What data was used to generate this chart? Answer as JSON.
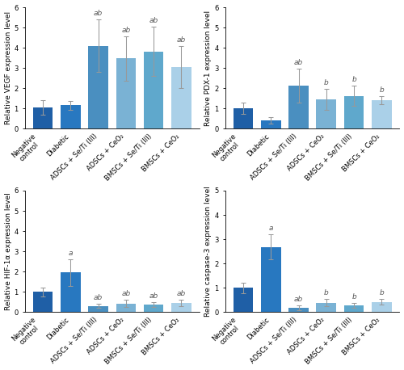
{
  "categories": [
    "Negative\ncontrol",
    "Diabetic",
    "ADSCs + Se/Ti (III)",
    "ADSCs + CeO₂",
    "BMSCs + Se/Ti (III)",
    "BMSCs + CeO₂"
  ],
  "subplots": [
    {
      "ylabel": "Relative VEGF expression level",
      "ylim": [
        0,
        6
      ],
      "yticks": [
        0,
        1,
        2,
        3,
        4,
        5,
        6
      ],
      "values": [
        1.05,
        1.15,
        4.1,
        3.48,
        3.82,
        3.05
      ],
      "errors": [
        0.35,
        0.22,
        1.3,
        1.1,
        1.22,
        1.05
      ],
      "annotations": [
        "",
        "",
        "ab",
        "ab",
        "ab",
        "ab"
      ]
    },
    {
      "ylabel": "Relative PDX-1 expression level",
      "ylim": [
        0,
        6
      ],
      "yticks": [
        0,
        1,
        2,
        3,
        4,
        5,
        6
      ],
      "values": [
        1.0,
        0.4,
        2.12,
        1.45,
        1.62,
        1.42
      ],
      "errors": [
        0.28,
        0.17,
        0.85,
        0.52,
        0.5,
        0.2
      ],
      "annotations": [
        "",
        "",
        "ab",
        "b",
        "b",
        "b"
      ]
    },
    {
      "ylabel": "Relative HIF-1α expression level",
      "ylim": [
        0,
        6
      ],
      "yticks": [
        0,
        1,
        2,
        3,
        4,
        5,
        6
      ],
      "values": [
        1.0,
        1.95,
        0.3,
        0.42,
        0.35,
        0.45
      ],
      "errors": [
        0.22,
        0.65,
        0.1,
        0.17,
        0.12,
        0.15
      ],
      "annotations": [
        "",
        "a",
        "ab",
        "ab",
        "ab",
        "ab"
      ]
    },
    {
      "ylabel": "Relative caspase-3 expression level",
      "ylim": [
        0,
        5
      ],
      "yticks": [
        0,
        1,
        2,
        3,
        4,
        5
      ],
      "values": [
        1.0,
        2.68,
        0.18,
        0.38,
        0.28,
        0.42
      ],
      "errors": [
        0.22,
        0.52,
        0.1,
        0.15,
        0.1,
        0.12
      ],
      "annotations": [
        "",
        "a",
        "ab",
        "b",
        "b",
        "b"
      ]
    }
  ],
  "bar_colors": [
    "#1f5fa6",
    "#2878c0",
    "#4a8fc0",
    "#7ab2d4",
    "#5fa8cc",
    "#aad0e8"
  ],
  "error_color": "#999999",
  "annotation_color": "#555555",
  "background_color": "#ffffff",
  "tick_label_fontsize": 6.0,
  "ylabel_fontsize": 6.5,
  "annotation_fontsize": 6.5,
  "bar_width": 0.72
}
